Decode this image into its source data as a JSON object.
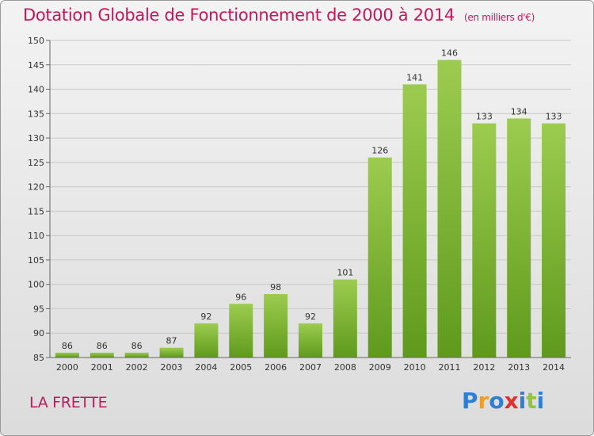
{
  "header": {
    "title": "Dotation Globale de Fonctionnement de 2000 à 2014",
    "subtitle": "(en milliers d'€)"
  },
  "footer": {
    "commune": "LA FRETTE",
    "logo_text": "Proxiti"
  },
  "colors": {
    "title": "#c2185b",
    "bar_light": "#9ccc4f",
    "bar_dark": "#5f9a1c",
    "logo": [
      "#2e7fd6",
      "#f0a020",
      "#2e7fd6",
      "#e03030",
      "#2e7fd6",
      "#8dc63f",
      "#2e7fd6"
    ]
  },
  "chart_data": {
    "type": "bar",
    "title": "Dotation Globale de Fonctionnement de 2000 à 2014",
    "subtitle": "(en milliers d'€)",
    "categories": [
      "2000",
      "2001",
      "2002",
      "2003",
      "2004",
      "2005",
      "2006",
      "2007",
      "2008",
      "2009",
      "2010",
      "2011",
      "2012",
      "2013",
      "2014"
    ],
    "values": [
      86,
      86,
      86,
      87,
      92,
      96,
      98,
      92,
      101,
      126,
      141,
      146,
      133,
      134,
      133
    ],
    "ylim": [
      85,
      150
    ],
    "yticks": [
      85,
      90,
      95,
      100,
      105,
      110,
      115,
      120,
      125,
      130,
      135,
      140,
      145,
      150
    ],
    "grid": true,
    "xlabel": "",
    "ylabel": ""
  }
}
